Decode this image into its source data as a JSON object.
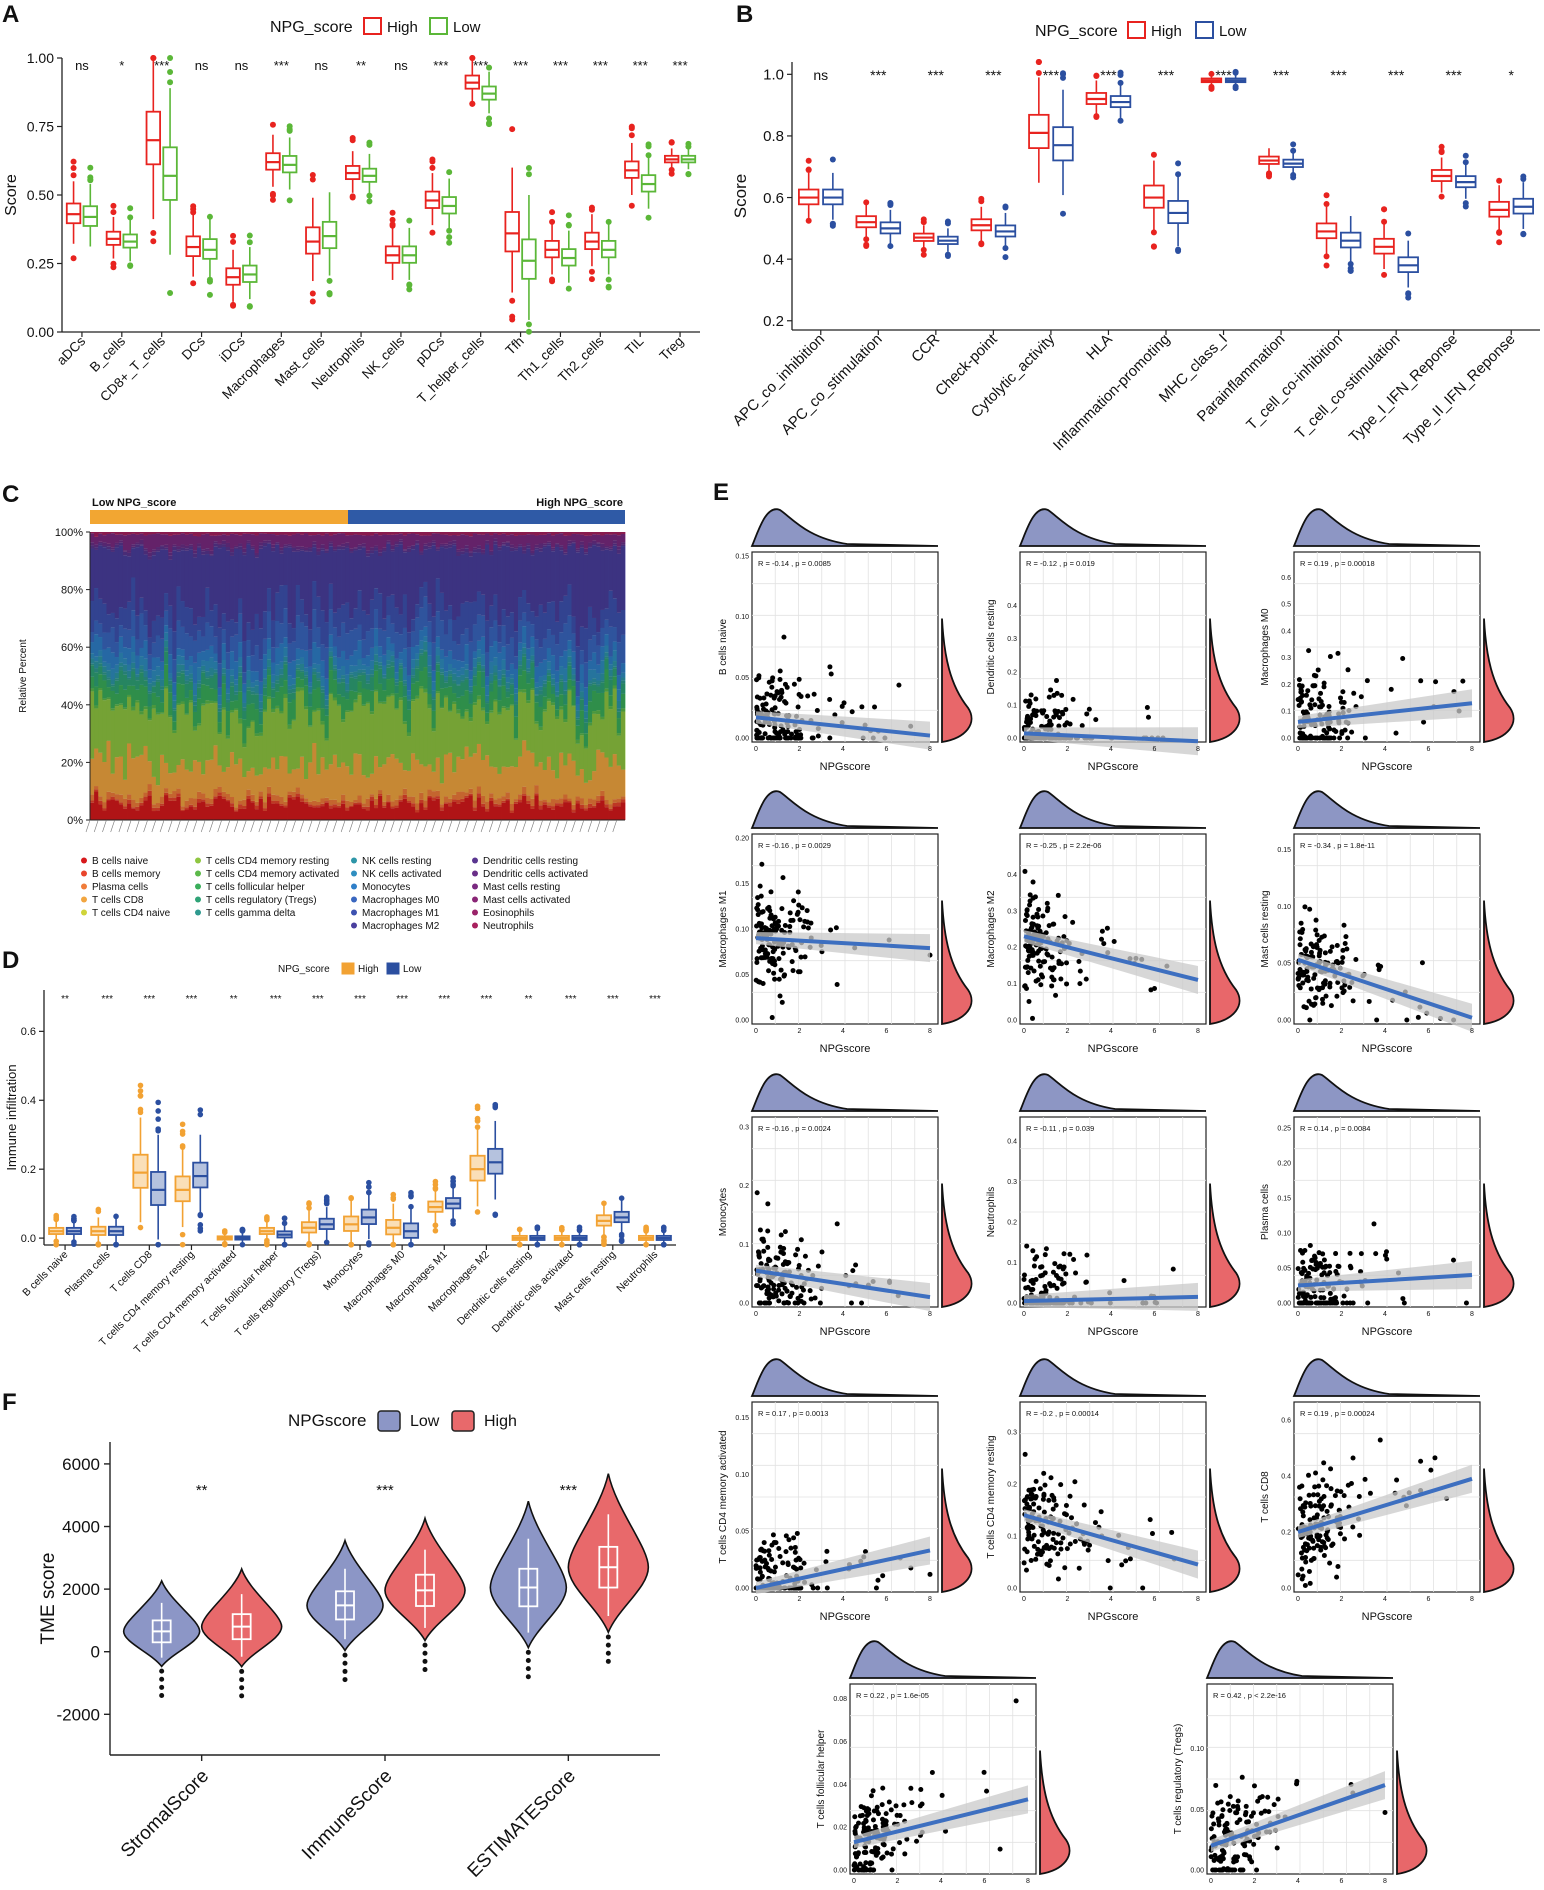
{
  "colors": {
    "red": "#e8231f",
    "green": "#5bb738",
    "blue": "#2b4fa0",
    "orange": "#f2a233",
    "vblue": "#8c96c6",
    "vred": "#e8696b",
    "fit": "#3d6fc0",
    "band": "#c9c9c9",
    "dens_top": "#8d96c4",
    "dens_right": "#e8676a"
  },
  "panels": {
    "A": {
      "label": "A",
      "legend_title": "NPG_score",
      "legend": [
        "High",
        "Low"
      ],
      "ylabel": "Score",
      "chart_data": {
        "type": "box",
        "ylim": [
          0,
          1
        ],
        "yticks": [
          "0.00",
          "0.25",
          "0.50",
          "0.75",
          "1.00"
        ],
        "categories": [
          "aDCs",
          "B_cells",
          "CD8+_T_cells",
          "DCs",
          "iDCs",
          "Macrophages",
          "Mast_cells",
          "Neutrophils",
          "NK_cells",
          "pDCs",
          "T_helper_cells",
          "Tfh",
          "Th1_cells",
          "Th2_cells",
          "TIL",
          "Treg"
        ],
        "significance": [
          "ns",
          "*",
          "***",
          "ns",
          "ns",
          "***",
          "ns",
          "**",
          "ns",
          "***",
          "***",
          "***",
          "***",
          "***",
          "***",
          "***"
        ],
        "series": [
          {
            "name": "High",
            "median": [
              0.43,
              0.34,
              0.7,
              0.31,
              0.2,
              0.62,
              0.33,
              0.58,
              0.28,
              0.48,
              0.91,
              0.36,
              0.3,
              0.33,
              0.59,
              0.63
            ]
          },
          {
            "name": "Low",
            "median": [
              0.42,
              0.33,
              0.57,
              0.3,
              0.21,
              0.61,
              0.35,
              0.57,
              0.28,
              0.46,
              0.87,
              0.26,
              0.27,
              0.3,
              0.54,
              0.63
            ]
          }
        ]
      }
    },
    "B": {
      "label": "B",
      "legend_title": "NPG_score",
      "legend": [
        "High",
        "Low"
      ],
      "ylabel": "Score",
      "chart_data": {
        "type": "box",
        "ylim": [
          0.17,
          1.04
        ],
        "yticks": [
          "0.2",
          "0.4",
          "0.6",
          "0.8",
          "1.0"
        ],
        "categories": [
          "APC_co_inhibition",
          "APC_co_stimulation",
          "CCR",
          "Check-point",
          "Cytolytic_activity",
          "HLA",
          "Inflammation-promoting",
          "MHC_class_I",
          "Parainflammation",
          "T_cell_co-inhibition",
          "T_cell_co-stimulation",
          "Type_I_IFN_Reponse",
          "Type_II_IFN_Reponse"
        ],
        "significance": [
          "ns",
          "***",
          "***",
          "***",
          "***",
          "***",
          "***",
          "***",
          "***",
          "***",
          "***",
          "***",
          "*"
        ],
        "series": [
          {
            "name": "High",
            "median": [
              0.6,
              0.52,
              0.47,
              0.51,
              0.81,
              0.92,
              0.6,
              0.98,
              0.72,
              0.49,
              0.44,
              0.67,
              0.56
            ]
          },
          {
            "name": "Low",
            "median": [
              0.6,
              0.5,
              0.46,
              0.49,
              0.77,
              0.91,
              0.55,
              0.98,
              0.71,
              0.46,
              0.38,
              0.65,
              0.57
            ]
          }
        ]
      }
    },
    "C": {
      "label": "C",
      "bar_low": "Low NPG_score",
      "bar_high": "High NPG_score",
      "ylabel": "Relative Percent",
      "chart_data": {
        "type": "stacked-bar",
        "yticks": [
          "0%",
          "20%",
          "40%",
          "60%",
          "80%",
          "100%"
        ],
        "legend": [
          "B cells naive",
          "B cells memory",
          "Plasma cells",
          "T cells CD8",
          "T cells CD4 naive",
          "T cells CD4 memory resting",
          "T cells CD4 memory activated",
          "T cells follicular helper",
          "T cells regulatory (Tregs)",
          "T cells gamma delta",
          "NK cells resting",
          "NK cells activated",
          "Monocytes",
          "Macrophages M0",
          "Macrophages M1",
          "Macrophages M2",
          "Dendritic cells resting",
          "Dendritic cells activated",
          "Mast cells resting",
          "Mast cells activated",
          "Eosinophils",
          "Neutrophils"
        ],
        "legend_colors": [
          "#d7191c",
          "#e8452c",
          "#f07c3a",
          "#f2a640",
          "#cfd43a",
          "#8fc641",
          "#5cb94a",
          "#3aae5b",
          "#2fa377",
          "#2f9a8f",
          "#2e96a8",
          "#2f8ec0",
          "#2f7fc8",
          "#3a67c0",
          "#3d52b0",
          "#4a3f9e",
          "#5a3690",
          "#6a2f88",
          "#7a2a80",
          "#8a2676",
          "#9a236a",
          "#a8205e"
        ],
        "mean_fractions": [
          0.06,
          0.01,
          0.02,
          0.13,
          0.0,
          0.2,
          0.01,
          0.06,
          0.04,
          0.01,
          0.02,
          0.03,
          0.05,
          0.08,
          0.09,
          0.22,
          0.01,
          0.01,
          0.04,
          0.0,
          0.0,
          0.01
        ]
      }
    },
    "D": {
      "label": "D",
      "legend_title": "NPG_score",
      "legend": [
        "High",
        "Low"
      ],
      "ylabel": "Immune infiltration",
      "chart_data": {
        "type": "box",
        "ylim": [
          -0.02,
          0.72
        ],
        "yticks": [
          "0.0",
          "0.2",
          "0.4",
          "0.6"
        ],
        "categories": [
          "B cells naive",
          "Plasma cells",
          "T cells CD8",
          "T cells CD4 memory resting",
          "T cells CD4 memory activated",
          "T cells follicular helper",
          "T cells regulatory (Tregs)",
          "Monocytes",
          "Macrophages M0",
          "Macrophages M1",
          "Macrophages M2",
          "Dendritic cells resting",
          "Dendritic cells activated",
          "Mast cells resting",
          "Neutrophils"
        ],
        "significance": [
          "**",
          "***",
          "***",
          "***",
          "**",
          "***",
          "***",
          "***",
          "***",
          "***",
          "***",
          "**",
          "***",
          "***",
          "***"
        ],
        "series": [
          {
            "name": "High",
            "median": [
              0.02,
              0.02,
              0.19,
              0.14,
              0.0,
              0.02,
              0.03,
              0.04,
              0.03,
              0.09,
              0.2,
              0.0,
              0.0,
              0.05,
              0.0
            ]
          },
          {
            "name": "Low",
            "median": [
              0.02,
              0.02,
              0.14,
              0.18,
              0.0,
              0.01,
              0.04,
              0.06,
              0.02,
              0.1,
              0.22,
              0.0,
              0.0,
              0.06,
              0.0
            ]
          }
        ]
      }
    },
    "E": {
      "label": "E",
      "xlabel": "NPGscore",
      "chart_data": {
        "type": "scatter",
        "xlim": [
          0,
          8
        ],
        "plots": [
          {
            "ylabel": "B cells naive",
            "stat": "R = -0.14 , p = 0.0085",
            "ymax": 0.15,
            "yticks": [
              "0.00",
              "0.05",
              "0.10",
              "0.15"
            ],
            "fit": [
              0.017,
              0.002
            ]
          },
          {
            "ylabel": "Dendritic cells resting",
            "stat": "R = -0.12 , p = 0.019",
            "ymax": 0.55,
            "yticks": [
              "0.0",
              "0.1",
              "0.2",
              "0.3",
              "0.4"
            ],
            "fit": [
              0.014,
              -0.01
            ]
          },
          {
            "ylabel": "Macrophages M0",
            "stat": "R = 0.19 , p = 0.00018",
            "ymax": 0.68,
            "yticks": [
              "0.0",
              "0.1",
              "0.2",
              "0.3",
              "0.4",
              "0.5",
              "0.6"
            ],
            "fit": [
              0.06,
              0.13
            ]
          },
          {
            "ylabel": "Macrophages M1",
            "stat": "R = -0.16 , p = 0.0029",
            "ymax": 0.2,
            "yticks": [
              "0.00",
              "0.05",
              "0.10",
              "0.15",
              "0.20"
            ],
            "fit": [
              0.09,
              0.079
            ]
          },
          {
            "ylabel": "Macrophages M2",
            "stat": "R = -0.25 , p = 2.2e-06",
            "ymax": 0.5,
            "yticks": [
              "0.0",
              "0.1",
              "0.2",
              "0.3",
              "0.4"
            ],
            "fit": [
              0.23,
              0.11
            ]
          },
          {
            "ylabel": "Mast cells resting",
            "stat": "R = -0.34 , p = 1.8e-11",
            "ymax": 0.16,
            "yticks": [
              "0.00",
              "0.05",
              "0.10",
              "0.15"
            ],
            "fit": [
              0.053,
              0.002
            ]
          },
          {
            "ylabel": "Monocytes",
            "stat": "R = -0.16 , p = 0.0024",
            "ymax": 0.31,
            "yticks": [
              "0.0",
              "0.1",
              "0.2",
              "0.3"
            ],
            "fit": [
              0.055,
              0.01
            ]
          },
          {
            "ylabel": "Neutrophils",
            "stat": "R = -0.11 , p = 0.039",
            "ymax": 0.45,
            "yticks": [
              "0.0",
              "0.1",
              "0.2",
              "0.3",
              "0.4"
            ],
            "fit": [
              0.005,
              0.015
            ]
          },
          {
            "ylabel": "Plasma cells",
            "stat": "R = 0.14 , p = 0.0084",
            "ymax": 0.26,
            "yticks": [
              "0.00",
              "0.05",
              "0.10",
              "0.15",
              "0.20",
              "0.25"
            ],
            "fit": [
              0.025,
              0.04
            ]
          },
          {
            "ylabel": "T cells CD4 memory activated",
            "stat": "R = 0.17 , p = 0.0013",
            "ymax": 0.16,
            "yticks": [
              "0.00",
              "0.05",
              "0.10",
              "0.15"
            ],
            "fit": [
              0.0,
              0.033
            ]
          },
          {
            "ylabel": "T cells CD4 memory resting",
            "stat": "R = -0.2 , p = 0.00014",
            "ymax": 0.35,
            "yticks": [
              "0.0",
              "0.1",
              "0.2",
              "0.3"
            ],
            "fit": [
              0.14,
              0.045
            ]
          },
          {
            "ylabel": "T cells CD8",
            "stat": "R = 0.19 , p = 0.00024",
            "ymax": 0.65,
            "yticks": [
              "0.0",
              "0.2",
              "0.4",
              "0.6"
            ],
            "fit": [
              0.2,
              0.39
            ]
          },
          {
            "ylabel": "T cells follicular helper",
            "stat": "R = 0.22 , p = 1.6e-05",
            "ymax": 0.085,
            "yticks": [
              "0.00",
              "0.02",
              "0.04",
              "0.06",
              "0.08"
            ],
            "fit": [
              0.013,
              0.033
            ]
          },
          {
            "ylabel": "T cells regulatory (Tregs)",
            "stat": "R = 0.42 , p < 2.2e-16",
            "ymax": 0.15,
            "yticks": [
              "0.00",
              "0.05",
              "0.10"
            ],
            "fit": [
              0.02,
              0.07
            ]
          }
        ],
        "xticks": [
          "0",
          "2",
          "4",
          "6",
          "8"
        ]
      }
    },
    "F": {
      "label": "F",
      "legend_title": "NPGscore",
      "legend": [
        "Low",
        "High"
      ],
      "ylabel": "TME score",
      "chart_data": {
        "type": "violin",
        "ylim": [
          -3300,
          6700
        ],
        "yticks": [
          "-2000",
          "0",
          "2000",
          "4000",
          "6000"
        ],
        "categories": [
          "StromalScore",
          "ImmuneScore",
          "ESTIMATEScore"
        ],
        "significance": [
          "**",
          "***",
          "***"
        ],
        "series": [
          {
            "name": "Low",
            "median": [
              650,
              1480,
              2050
            ]
          },
          {
            "name": "High",
            "median": [
              800,
              1960,
              2700
            ]
          }
        ]
      }
    }
  }
}
